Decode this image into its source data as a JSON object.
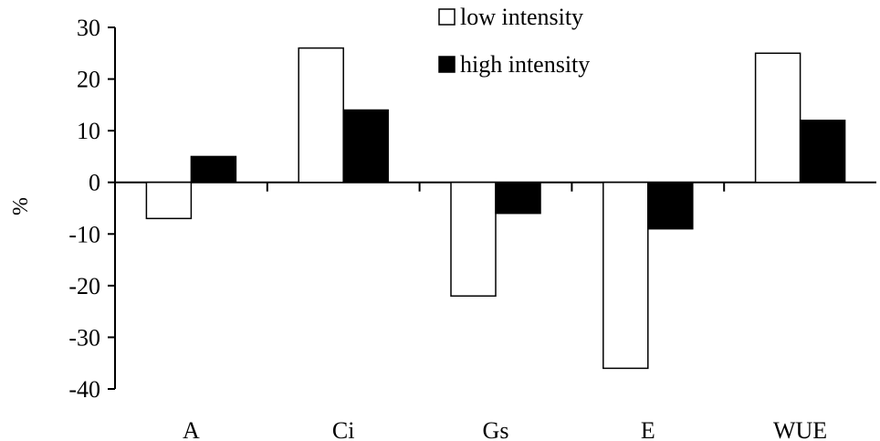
{
  "chart_data": {
    "type": "bar",
    "title": "",
    "xlabel": "",
    "ylabel": "%",
    "ylim": [
      -40,
      30
    ],
    "yticks": [
      30,
      20,
      10,
      0,
      -10,
      -20,
      -30,
      -40
    ],
    "ytick_labels": [
      "30",
      "20",
      "10",
      "0",
      "-10",
      "-20",
      "-30",
      "-40"
    ],
    "categories": [
      "A",
      "Ci",
      "Gs",
      "E",
      "WUE"
    ],
    "series": [
      {
        "name": "low intensity",
        "values": [
          -7,
          26,
          -22,
          -36,
          25
        ],
        "fill": "#ffffff"
      },
      {
        "name": "high intensity",
        "values": [
          5,
          14,
          -6,
          -9,
          12
        ],
        "fill": "#000000"
      }
    ],
    "grid": false,
    "legend": {
      "position": "top-right"
    }
  }
}
